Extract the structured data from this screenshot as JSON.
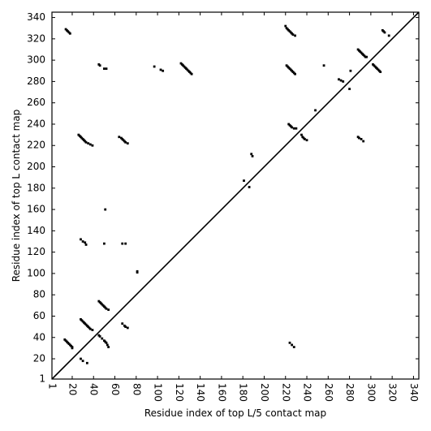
{
  "chart_data": {
    "type": "scatter",
    "xlabel": "Residue index of top L/5 contact map",
    "ylabel": "Residue index of top L contact map",
    "xlim": [
      1,
      345
    ],
    "ylim": [
      1,
      345
    ],
    "xticks": [
      1,
      20,
      40,
      60,
      80,
      100,
      120,
      140,
      160,
      180,
      200,
      220,
      240,
      260,
      280,
      300,
      320,
      340
    ],
    "yticks": [
      1,
      20,
      40,
      60,
      80,
      100,
      120,
      140,
      160,
      180,
      200,
      220,
      240,
      260,
      280,
      300,
      320,
      340
    ],
    "diagonal": true,
    "color": "#000000",
    "x": [
      14,
      15,
      16,
      17,
      18,
      45,
      46,
      50,
      52,
      97,
      103,
      105,
      122,
      123,
      124,
      125,
      126,
      127,
      128,
      129,
      130,
      131,
      132,
      26,
      27,
      28,
      29,
      30,
      31,
      32,
      33,
      35,
      37,
      39,
      64,
      66,
      67,
      68,
      69,
      70,
      72,
      28,
      30,
      32,
      33,
      50,
      67,
      70,
      81,
      81,
      51,
      220,
      221,
      222,
      223,
      224,
      225,
      226,
      227,
      229,
      221,
      222,
      223,
      224,
      225,
      226,
      227,
      228,
      229,
      223,
      224,
      225,
      226,
      228,
      230,
      235,
      236,
      237,
      238,
      240,
      288,
      289,
      290,
      291,
      292,
      293,
      294,
      295,
      296,
      302,
      303,
      304,
      305,
      306,
      307,
      308,
      309,
      311,
      312,
      313,
      317,
      270,
      272,
      274,
      281,
      280,
      288,
      289,
      291,
      293,
      188,
      189,
      248,
      256,
      181,
      186,
      224,
      226,
      228,
      13,
      14,
      15,
      16,
      17,
      18,
      19,
      20,
      20,
      28,
      29,
      30,
      31,
      32,
      33,
      34,
      35,
      36,
      37,
      39,
      45,
      46,
      47,
      48,
      49,
      50,
      51,
      52,
      54,
      45,
      46,
      48,
      50,
      51,
      52,
      53,
      54,
      67,
      69,
      70,
      72,
      28,
      30,
      34
    ],
    "y": [
      329,
      328,
      327,
      326,
      325,
      296,
      295,
      292,
      292,
      294,
      291,
      290,
      297,
      296,
      295,
      294,
      293,
      292,
      291,
      290,
      289,
      288,
      287,
      230,
      229,
      228,
      227,
      226,
      225,
      224,
      223,
      222,
      221,
      220,
      228,
      227,
      226,
      225,
      224,
      223,
      222,
      132,
      130,
      129,
      127,
      128,
      128,
      128,
      102,
      101,
      160,
      332,
      330,
      329,
      328,
      327,
      326,
      325,
      324,
      323,
      295,
      294,
      293,
      292,
      291,
      290,
      289,
      288,
      287,
      240,
      239,
      238,
      237,
      236,
      236,
      230,
      228,
      227,
      226,
      225,
      310,
      309,
      308,
      307,
      306,
      305,
      304,
      303,
      303,
      296,
      295,
      294,
      293,
      292,
      291,
      290,
      289,
      328,
      327,
      326,
      323,
      282,
      281,
      280,
      290,
      273,
      228,
      227,
      226,
      224,
      212,
      210,
      253,
      295,
      187,
      181,
      35,
      33,
      31,
      38,
      37,
      36,
      35,
      34,
      33,
      32,
      31,
      30,
      57,
      56,
      55,
      54,
      53,
      52,
      51,
      50,
      49,
      48,
      47,
      74,
      73,
      72,
      71,
      70,
      69,
      68,
      67,
      66,
      42,
      41,
      39,
      37,
      36,
      35,
      33,
      31,
      53,
      51,
      50,
      49,
      20,
      18,
      16
    ]
  }
}
